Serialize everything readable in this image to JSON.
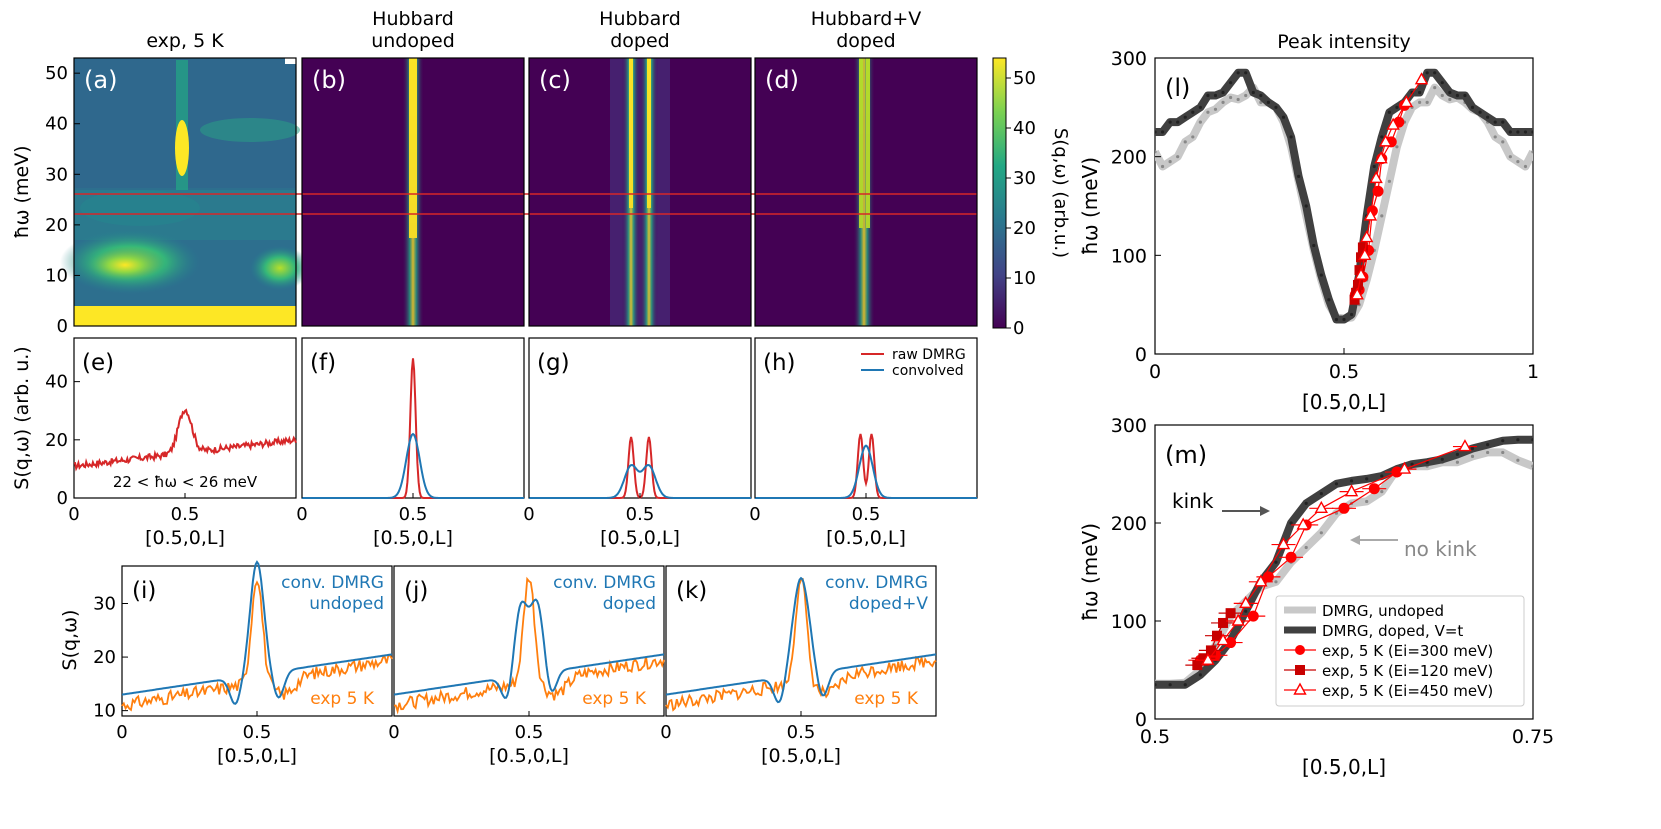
{
  "colorbar": {
    "ticks": [
      "0",
      "10",
      "20",
      "30",
      "40",
      "50"
    ],
    "label": "S(q,ω) (arb.u.)"
  },
  "heatmaps": [
    {
      "id": "a",
      "title": [
        "exp, 5 K"
      ],
      "panel": "(a)",
      "ylabel": "ħω (meV)",
      "yticks": [
        "0",
        "10",
        "20",
        "30",
        "40",
        "50"
      ],
      "ylim": [
        0,
        53
      ],
      "xlim": [
        0,
        1
      ]
    },
    {
      "id": "b",
      "title": [
        "Hubbard",
        "undoped"
      ],
      "panel": "(b)"
    },
    {
      "id": "c",
      "title": [
        "Hubbard",
        "doped"
      ],
      "panel": "(c)"
    },
    {
      "id": "d",
      "title": [
        "Hubbard+V",
        "doped"
      ],
      "panel": "(d)"
    }
  ],
  "energy_window": {
    "low_meV": 22,
    "high_meV": 26,
    "label": "22 < ħω < 26 meV"
  },
  "cuts": {
    "ylabel": "S(q,ω) (arb. u.)",
    "yticks": [
      "0",
      "20",
      "40"
    ],
    "xticks": [
      "0",
      "0.5",
      "1"
    ],
    "xlabel": "[0.5,0,L]",
    "legend": [
      "raw DMRG",
      "convolved"
    ],
    "panels": [
      {
        "id": "e",
        "panel": "(e)",
        "series": [
          {
            "name": "exp",
            "color": "#d62728",
            "baseline": [
              11,
              20
            ],
            "peak": {
              "x": 0.5,
              "height": 30
            }
          }
        ]
      },
      {
        "id": "f",
        "panel": "(f)",
        "series": [
          {
            "name": "raw DMRG",
            "color": "#d62728",
            "peaks": [
              {
                "x": 0.5,
                "h": 48,
                "w": 0.012
              }
            ]
          },
          {
            "name": "convolved",
            "color": "#1f77b4",
            "peaks": [
              {
                "x": 0.5,
                "h": 22,
                "w": 0.03
              }
            ]
          }
        ]
      },
      {
        "id": "g",
        "panel": "(g)",
        "series": [
          {
            "name": "raw DMRG",
            "color": "#d62728",
            "peaks": [
              {
                "x": 0.46,
                "h": 21,
                "w": 0.012
              },
              {
                "x": 0.54,
                "h": 21,
                "w": 0.012
              }
            ]
          },
          {
            "name": "convolved",
            "color": "#1f77b4",
            "peaks": [
              {
                "x": 0.46,
                "h": 11,
                "w": 0.03
              },
              {
                "x": 0.54,
                "h": 11,
                "w": 0.03
              }
            ]
          }
        ]
      },
      {
        "id": "h",
        "panel": "(h)",
        "series": [
          {
            "name": "raw DMRG",
            "color": "#d62728",
            "peaks": [
              {
                "x": 0.475,
                "h": 22,
                "w": 0.012
              },
              {
                "x": 0.525,
                "h": 22,
                "w": 0.012
              }
            ]
          },
          {
            "name": "convolved",
            "color": "#1f77b4",
            "peaks": [
              {
                "x": 0.5,
                "h": 18,
                "w": 0.03
              }
            ]
          }
        ]
      }
    ]
  },
  "compare": {
    "ylabel": "S(q,ω)",
    "yticks": [
      "10",
      "20",
      "30"
    ],
    "ylim": [
      9,
      37
    ],
    "xticks": [
      "0",
      "0.5",
      "1"
    ],
    "xlabel": "[0.5,0,L]",
    "exp_label": "exp 5 K",
    "panels": [
      {
        "id": "i",
        "panel": "(i)",
        "label": [
          "conv. DMRG",
          "undoped"
        ],
        "model": {
          "baseline": [
            13,
            20.5
          ],
          "peaks": [
            {
              "x": 0.5,
              "h": 21,
              "w": 0.025
            }
          ]
        }
      },
      {
        "id": "j",
        "panel": "(j)",
        "label": [
          "conv. DMRG",
          "doped"
        ],
        "model": {
          "baseline": [
            13,
            20.5
          ],
          "peaks": [
            {
              "x": 0.47,
              "h": 13,
              "w": 0.025
            },
            {
              "x": 0.53,
              "h": 13,
              "w": 0.025
            }
          ]
        }
      },
      {
        "id": "k",
        "panel": "(k)",
        "label": [
          "conv. DMRG",
          "doped+V"
        ],
        "model": {
          "baseline": [
            13,
            20.5
          ],
          "peaks": [
            {
              "x": 0.5,
              "h": 18,
              "w": 0.03
            }
          ]
        }
      }
    ]
  },
  "chart_data": [
    {
      "type": "line",
      "title": "Peak intensity",
      "panel": "(l)",
      "xlabel": "[0.5,0,L]",
      "ylabel": "ħω (meV)",
      "xlim": [
        0,
        1
      ],
      "ylim": [
        0,
        300
      ],
      "xticks": [
        "0",
        "0.5",
        "1"
      ],
      "yticks": [
        "0",
        "100",
        "200",
        "300"
      ],
      "series": [
        {
          "name": "DMRG, undoped",
          "color": "#c8c8c8",
          "x": [
            0,
            0.02,
            0.04,
            0.06,
            0.08,
            0.1,
            0.12,
            0.14,
            0.16,
            0.18,
            0.2,
            0.22,
            0.24,
            0.26,
            0.28,
            0.3,
            0.32,
            0.34,
            0.36,
            0.38,
            0.4,
            0.42,
            0.44,
            0.46,
            0.48,
            0.5,
            0.52,
            0.54,
            0.56,
            0.58,
            0.6,
            0.62,
            0.64,
            0.66,
            0.68,
            0.7,
            0.72,
            0.74,
            0.76,
            0.78,
            0.8,
            0.82,
            0.84,
            0.86,
            0.88,
            0.9,
            0.92,
            0.94,
            0.96,
            0.98,
            1.0
          ],
          "y": [
            205,
            190,
            195,
            200,
            215,
            220,
            235,
            245,
            248,
            255,
            260,
            258,
            262,
            270,
            255,
            255,
            250,
            235,
            210,
            175,
            140,
            105,
            75,
            50,
            37,
            36,
            37,
            50,
            75,
            105,
            140,
            175,
            210,
            235,
            250,
            255,
            255,
            270,
            262,
            258,
            260,
            255,
            248,
            245,
            235,
            220,
            215,
            200,
            195,
            190,
            205
          ]
        },
        {
          "name": "DMRG, doped, V=t",
          "color": "#404040",
          "x": [
            0,
            0.02,
            0.04,
            0.06,
            0.08,
            0.1,
            0.12,
            0.14,
            0.16,
            0.18,
            0.2,
            0.22,
            0.24,
            0.26,
            0.28,
            0.3,
            0.32,
            0.34,
            0.36,
            0.38,
            0.4,
            0.42,
            0.44,
            0.46,
            0.48,
            0.5,
            0.52,
            0.54,
            0.56,
            0.58,
            0.6,
            0.62,
            0.64,
            0.66,
            0.68,
            0.7,
            0.72,
            0.74,
            0.76,
            0.78,
            0.8,
            0.82,
            0.84,
            0.86,
            0.88,
            0.9,
            0.92,
            0.94,
            0.96,
            0.98,
            1.0
          ],
          "y": [
            225,
            225,
            235,
            235,
            240,
            245,
            250,
            262,
            262,
            265,
            275,
            285,
            285,
            265,
            262,
            255,
            250,
            240,
            220,
            180,
            150,
            110,
            80,
            55,
            35,
            35,
            40,
            80,
            140,
            190,
            220,
            245,
            250,
            255,
            265,
            265,
            285,
            285,
            275,
            265,
            262,
            262,
            250,
            245,
            240,
            235,
            235,
            225,
            225,
            225,
            225
          ]
        },
        {
          "name": "exp, 5 K (Ei=300 meV)",
          "color": "#ff0000",
          "marker": "circle",
          "x": [
            0.53,
            0.54,
            0.55,
            0.565,
            0.575,
            0.59,
            0.6,
            0.625,
            0.645,
            0.66
          ],
          "y": [
            60,
            65,
            78,
            105,
            145,
            165,
            198,
            215,
            235,
            252
          ]
        },
        {
          "name": "exp, 5 K (Ei=120 meV)",
          "color": "#c80000",
          "marker": "square",
          "x": [
            0.528,
            0.532,
            0.537,
            0.541,
            0.545,
            0.55
          ],
          "y": [
            55,
            62,
            70,
            85,
            98,
            108
          ]
        },
        {
          "name": "exp, 5 K (Ei=450 meV)",
          "color": "#ff0000",
          "marker": "triangle",
          "x": [
            0.535,
            0.545,
            0.555,
            0.56,
            0.57,
            0.585,
            0.598,
            0.61,
            0.63,
            0.665,
            0.705
          ],
          "y": [
            60,
            80,
            100,
            118,
            140,
            178,
            198,
            215,
            232,
            255,
            278
          ]
        }
      ]
    },
    {
      "type": "line",
      "panel": "(m)",
      "xlabel": "[0.5,0,L]",
      "ylabel": "ħω (meV)",
      "xlim": [
        0.5,
        0.75
      ],
      "ylim": [
        0,
        300
      ],
      "xticks": [
        "0.5",
        "0.75"
      ],
      "yticks": [
        "0",
        "100",
        "200",
        "300"
      ],
      "annotations": [
        {
          "text": "kink",
          "x": 0.6,
          "y": 220
        },
        {
          "text": "no kink",
          "x": 0.63,
          "y": 205
        }
      ],
      "series": [
        {
          "name": "DMRG, undoped",
          "color": "#c8c8c8",
          "x": [
            0.5,
            0.51,
            0.52,
            0.53,
            0.54,
            0.55,
            0.56,
            0.57,
            0.58,
            0.59,
            0.6,
            0.61,
            0.62,
            0.63,
            0.64,
            0.65,
            0.66,
            0.67,
            0.68,
            0.69,
            0.7,
            0.71,
            0.72,
            0.73,
            0.74,
            0.75
          ],
          "y": [
            36,
            36,
            37,
            50,
            75,
            105,
            120,
            135,
            140,
            160,
            175,
            190,
            210,
            220,
            222,
            232,
            255,
            258,
            258,
            262,
            262,
            268,
            272,
            272,
            264,
            258
          ]
        },
        {
          "name": "DMRG, doped, V=t",
          "color": "#404040",
          "x": [
            0.5,
            0.51,
            0.52,
            0.53,
            0.54,
            0.55,
            0.56,
            0.57,
            0.58,
            0.59,
            0.6,
            0.61,
            0.62,
            0.63,
            0.64,
            0.65,
            0.66,
            0.67,
            0.68,
            0.69,
            0.7,
            0.71,
            0.72,
            0.73,
            0.74,
            0.75
          ],
          "y": [
            35,
            35,
            35,
            45,
            60,
            80,
            110,
            140,
            160,
            200,
            220,
            230,
            240,
            243,
            245,
            248,
            255,
            260,
            262,
            265,
            270,
            276,
            280,
            284,
            285,
            285
          ]
        },
        {
          "name": "exp, 5 K (Ei=300 meV)",
          "color": "#ff0000",
          "marker": "circle",
          "x": [
            0.53,
            0.54,
            0.55,
            0.565,
            0.575,
            0.59,
            0.6,
            0.625,
            0.645,
            0.66
          ],
          "y": [
            60,
            65,
            78,
            105,
            145,
            165,
            198,
            215,
            235,
            252
          ]
        },
        {
          "name": "exp, 5 K (Ei=120 meV)",
          "color": "#c80000",
          "marker": "square",
          "x": [
            0.528,
            0.532,
            0.537,
            0.541,
            0.545,
            0.55
          ],
          "y": [
            55,
            62,
            70,
            85,
            98,
            108
          ]
        },
        {
          "name": "exp, 5 K (Ei=450 meV)",
          "color": "#ff0000",
          "marker": "triangle",
          "x": [
            0.535,
            0.545,
            0.555,
            0.56,
            0.57,
            0.585,
            0.598,
            0.61,
            0.63,
            0.665,
            0.705
          ],
          "y": [
            60,
            80,
            100,
            118,
            140,
            178,
            198,
            215,
            232,
            255,
            278
          ]
        }
      ]
    }
  ]
}
